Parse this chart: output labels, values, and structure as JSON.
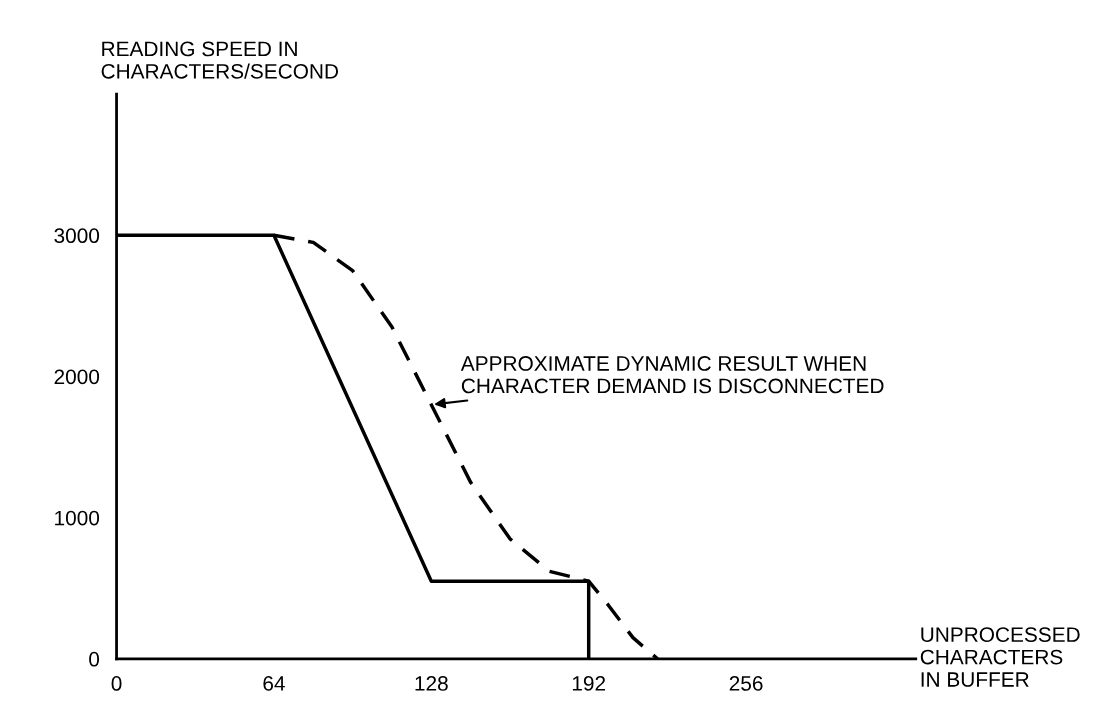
{
  "chart_data": {
    "type": "line",
    "xlabel": "UNPROCESSED\nCHARACTERS\nIN BUFFER",
    "ylabel": "READING SPEED IN\nCHARACTERS/SECOND",
    "series": [
      {
        "color": "#000000",
        "line_style": "solid",
        "x": [
          0,
          64,
          128,
          192,
          192
        ],
        "values": [
          3000,
          3000,
          550,
          550,
          0
        ]
      },
      {
        "color": "#000000",
        "line_style": "dashed",
        "x": [
          64,
          80,
          96,
          112,
          128,
          144,
          160,
          176,
          192,
          200,
          210,
          220
        ],
        "values": [
          3000,
          2950,
          2750,
          2350,
          1800,
          1250,
          850,
          620,
          550,
          380,
          150,
          0
        ]
      }
    ],
    "xlim": [
      0,
      325
    ],
    "ylim": [
      0,
      4000
    ],
    "xticks": [
      0,
      64,
      128,
      192,
      256
    ],
    "yticks": [
      0,
      1000,
      2000,
      3000
    ],
    "annotations": [
      {
        "text": "APPROXIMATE DYNAMIC RESULT WHEN\nCHARACTER DEMAND IS DISCONNECTED",
        "x": 128,
        "y": 1800
      }
    ],
    "grid": false,
    "legend": false,
    "marker": "none"
  }
}
